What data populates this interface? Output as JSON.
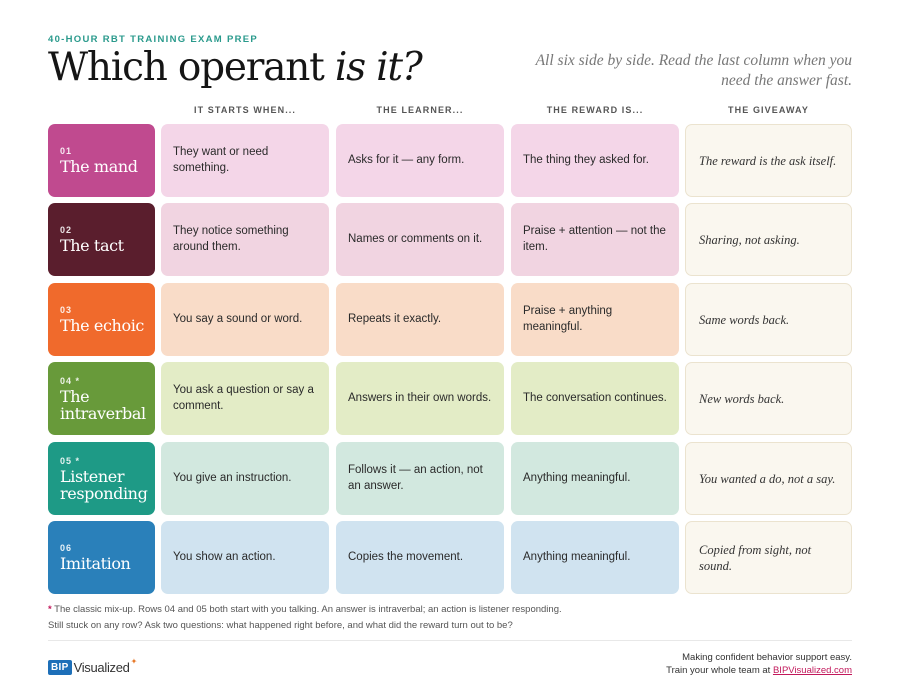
{
  "header": {
    "eyebrow": "40-HOUR RBT TRAINING EXAM PREP",
    "title_main": "Which operant ",
    "title_em": "is it?",
    "intro": "All six side by side. Read the last column when you need the answer fast."
  },
  "columns": [
    "IT STARTS WHEN...",
    "THE LEARNER...",
    "THE REWARD IS...",
    "THE GIVEAWAY"
  ],
  "rows": [
    {
      "num": "01",
      "name": "The mand",
      "starts": "They want or need something.",
      "learner": "Asks for it — any form.",
      "reward": "The thing they asked for.",
      "giveaway": "The reward is the ask itself.",
      "color": "#c04a8f",
      "tint": "#f4d6e8"
    },
    {
      "num": "02",
      "name": "The tact",
      "starts": "They notice something around them.",
      "learner": "Names or comments on it.",
      "reward": "Praise + attention — not the item.",
      "giveaway": "Sharing, not asking.",
      "color": "#5a1e2d",
      "tint": "#f1d4e1"
    },
    {
      "num": "03",
      "name": "The echoic",
      "starts": "You say a sound or word.",
      "learner": "Repeats it exactly.",
      "reward": "Praise + anything meaningful.",
      "giveaway": "Same words back.",
      "color": "#f06a2c",
      "tint": "#f9dcc8"
    },
    {
      "num": "04 *",
      "name": "The intraverbal",
      "starts": "You ask a question or say a comment.",
      "learner": "Answers in their own words.",
      "reward": "The conversation continues.",
      "giveaway": "New words back.",
      "color": "#689a3a",
      "tint": "#e3ecc6"
    },
    {
      "num": "05 *",
      "name": "Listener responding",
      "starts": "You give an instruction.",
      "learner": "Follows it — an action, not an answer.",
      "reward": "Anything meaningful.",
      "giveaway": "You wanted a do, not a say.",
      "color": "#1e9a86",
      "tint": "#d2e8df"
    },
    {
      "num": "06",
      "name": "Imitation",
      "starts": "You show an action.",
      "learner": "Copies the movement.",
      "reward": "Anything meaningful.",
      "giveaway": "Copied from sight, not sound.",
      "color": "#2a80ba",
      "tint": "#d0e3f0"
    }
  ],
  "notes": {
    "star": "*",
    "line1": " The classic mix-up. Rows 04 and 05 both start with you talking. An answer is intraverbal; an action is listener responding.",
    "line2": "Still stuck on any row? Ask two questions: what happened right before, and what did the reward turn out to be?"
  },
  "footer": {
    "logo_mark": "BIP",
    "logo_text": "Visualized",
    "logo_spark": "✦",
    "line1": "Making confident behavior support easy.",
    "line2_prefix": "Train your whole team at ",
    "link": "BIPVisualized.com"
  }
}
